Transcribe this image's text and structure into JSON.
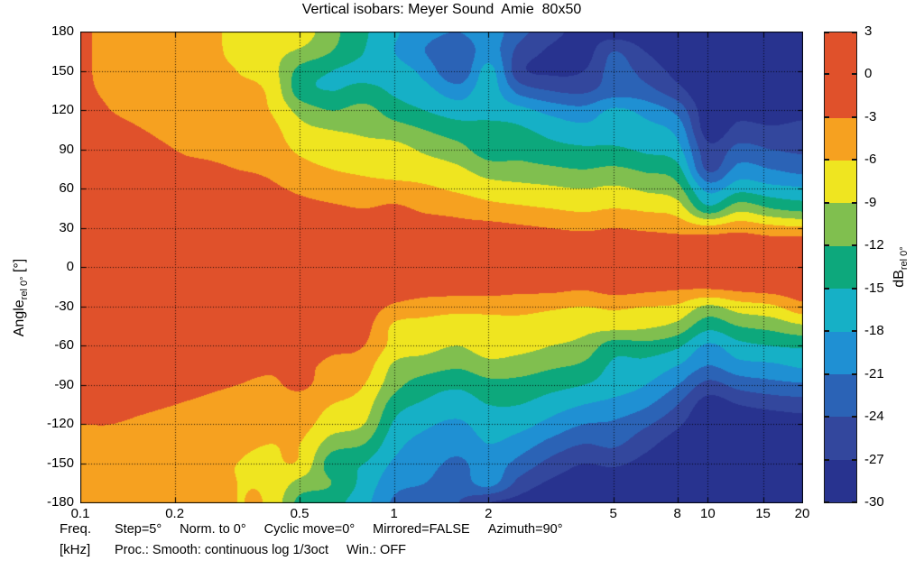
{
  "title": "Vertical isobars: Meyer Sound  Amie  80x50",
  "axes": {
    "y_label_main": "Angle",
    "y_label_sub": "rel 0°",
    "y_label_unit": " [°]",
    "y_ticks": [
      180,
      150,
      120,
      90,
      60,
      30,
      0,
      -30,
      -60,
      -90,
      -120,
      -150,
      -180
    ],
    "x_tick_labels": [
      "0.1",
      "0.2",
      "0.5",
      "1",
      "2",
      "5",
      "8",
      "10",
      "15",
      "20"
    ],
    "x_ticks_khz": [
      0.1,
      0.2,
      0.5,
      1,
      2,
      5,
      8,
      10,
      15,
      20
    ],
    "x_label_line1": "Freq.",
    "x_label_line2": "[kHz]",
    "x_range_khz": [
      0.1,
      20
    ],
    "y_range_deg": [
      -180,
      180
    ],
    "grid": "dotted black, 30° horizontal and labeled-frequency vertical lines"
  },
  "colorbar": {
    "label_main": "dB",
    "label_sub": "rel 0°",
    "ticks": [
      3,
      0,
      -3,
      -6,
      -9,
      -12,
      -15,
      -18,
      -21,
      -24,
      -27,
      -30
    ],
    "segment_colors_top_to_bottom": [
      "#e0512b",
      "#e0512b",
      "#f6a120",
      "#efe520",
      "#80bf4f",
      "#0da87c",
      "#16b0c6",
      "#1f90d3",
      "#2b63b6",
      "#33479d",
      "#28338f"
    ]
  },
  "footnotes": {
    "line1_items": [
      "Step=5°",
      "Norm. to 0°",
      "Cyclic move=0°",
      "Mirrored=FALSE",
      "Azimuth=90°"
    ],
    "line2_items": [
      "Proc.: Smooth: continuous log 1/3oct",
      "Win.: OFF"
    ]
  },
  "chart_data": {
    "type": "heatmap",
    "title": "Vertical isobars: Meyer Sound  Amie  80x50",
    "xlabel": "Freq. [kHz]",
    "ylabel": "Angle rel 0° [°]",
    "zlabel": "dB rel 0°",
    "x_scale": "log",
    "x_range_khz": [
      0.1,
      20
    ],
    "y_range_deg": [
      -180,
      180
    ],
    "z_levels_db": [
      3,
      0,
      -3,
      -6,
      -9,
      -12,
      -15,
      -18,
      -21,
      -24,
      -27,
      -30
    ],
    "x_frequencies_khz": [
      0.1,
      0.125,
      0.16,
      0.2,
      0.25,
      0.315,
      0.4,
      0.5,
      0.63,
      0.8,
      1,
      1.25,
      1.6,
      2,
      2.5,
      3.15,
      4,
      5,
      6.3,
      8,
      10,
      12.5,
      16,
      20
    ],
    "y_angles_deg": [
      180,
      165,
      150,
      135,
      120,
      105,
      90,
      75,
      60,
      45,
      30,
      15,
      0,
      -15,
      -30,
      -45,
      -60,
      -75,
      -90,
      -105,
      -120,
      -135,
      -150,
      -165,
      -180
    ],
    "values_db": [
      [
        -2.5,
        -4,
        -4.5,
        -5,
        -5.5,
        -6.5,
        -7.5,
        -7.5,
        -11,
        -14.5,
        -17.5,
        -20,
        -21,
        -19.5,
        -23,
        -26,
        -28,
        -28.5,
        -29,
        -29.5,
        -29.5,
        -29.5,
        -29.5,
        -29.5
      ],
      [
        -2.5,
        -4,
        -4.5,
        -5,
        -5.5,
        -6.5,
        -8,
        -9.5,
        -12,
        -15,
        -18,
        -21,
        -23.5,
        -19.5,
        -25,
        -27.5,
        -28.5,
        -24,
        -27,
        -29,
        -29.5,
        -29.5,
        -29.5,
        -29.5
      ],
      [
        -2.5,
        -4,
        -4.5,
        -5,
        -5.5,
        -6,
        -7.5,
        -13,
        -15,
        -16,
        -16.5,
        -19,
        -23.5,
        -17,
        -26,
        -27.5,
        -27,
        -23,
        -25,
        -28,
        -29.5,
        -29.5,
        -29.5,
        -29.5
      ],
      [
        -2.5,
        -3.5,
        -4,
        -4.5,
        -5,
        -5.5,
        -6.5,
        -13.5,
        -15,
        -14,
        -15.5,
        -17,
        -19.5,
        -16.5,
        -22,
        -24,
        -24.5,
        -22.5,
        -23,
        -26,
        -29.5,
        -29,
        -29.5,
        -29.5
      ],
      [
        -2,
        -3,
        -3.5,
        -4,
        -4.5,
        -5,
        -6,
        -10,
        -12,
        -11,
        -13.5,
        -15,
        -16.5,
        -16,
        -17,
        -19,
        -20,
        -17.5,
        -19,
        -22,
        -29,
        -28,
        -28.5,
        -28
      ],
      [
        -2,
        -2.5,
        -3,
        -3.5,
        -4,
        -4.5,
        -5,
        -8,
        -9,
        -9.5,
        -10.5,
        -12,
        -13.5,
        -14,
        -14.5,
        -16,
        -17,
        -16.5,
        -17,
        -19,
        -28.5,
        -26,
        -26.5,
        -26
      ],
      [
        -1.5,
        -2,
        -2.5,
        -3,
        -3.5,
        -4,
        -4.5,
        -6.5,
        -7.5,
        -8,
        -8,
        -9.5,
        -11,
        -13.5,
        -13,
        -14,
        -14.5,
        -14.5,
        -15.5,
        -17,
        -26,
        -23,
        -24,
        -24.5
      ],
      [
        -1,
        -1.5,
        -2,
        -2.5,
        -2.5,
        -3,
        -3.5,
        -5,
        -6,
        -6.5,
        -7,
        -7.5,
        -8.5,
        -10.5,
        -11,
        -11.5,
        -12,
        -11.5,
        -12.5,
        -14,
        -24.5,
        -20,
        -21,
        -22
      ],
      [
        -1,
        -1,
        -1.5,
        -1.5,
        -2,
        -2,
        -2.5,
        -3.5,
        -4.5,
        -5,
        -5,
        -5.5,
        -6.5,
        -7.5,
        -8,
        -8.5,
        -9,
        -8.5,
        -9.5,
        -11,
        -19,
        -16,
        -17,
        -17.5
      ],
      [
        -1,
        -1,
        -1,
        -1,
        -1,
        -1.5,
        -1.5,
        -2,
        -2.5,
        -3,
        -2.5,
        -3.5,
        -4,
        -5,
        -5.5,
        -6,
        -6.5,
        -6,
        -6.5,
        -7.5,
        -14,
        -10,
        -12,
        -13
      ],
      [
        -1,
        -1,
        -1,
        -1,
        -1,
        -1,
        -1,
        -1,
        -1.5,
        -1.5,
        -1.5,
        -1.5,
        -2,
        -2,
        -2.5,
        -3,
        -3.5,
        -3,
        -3.5,
        -4,
        -5,
        -4,
        -5,
        -5.5
      ],
      [
        -0.5,
        -0.5,
        -0.5,
        -0.5,
        -0.5,
        -0.5,
        -0.5,
        -1,
        -1,
        -1,
        -0.5,
        -0.5,
        -0.5,
        -0.5,
        -0.5,
        -0.5,
        -0.5,
        -0.5,
        -0.5,
        -1,
        -0.5,
        -0.5,
        -1,
        -0.5
      ],
      [
        -0.5,
        -0.5,
        -0.5,
        -0.5,
        -0.5,
        -0.5,
        -0.5,
        -0.5,
        -0.5,
        -0.5,
        -0.5,
        -0.5,
        -0.5,
        -0.5,
        -0.5,
        -0.5,
        -0.5,
        -0.5,
        -0.5,
        -0.5,
        -0.5,
        -0.5,
        -0.5,
        -0.5
      ],
      [
        -1,
        -1,
        -1,
        -1,
        -1,
        -1,
        -1,
        -1,
        -1,
        -1,
        -1,
        -1.5,
        -1.5,
        -1.5,
        -2,
        -2,
        -2.5,
        -1.5,
        -2,
        -2.5,
        -2.5,
        -2,
        -1.5,
        -1
      ],
      [
        -1,
        -1,
        -1,
        -1,
        -1,
        -1,
        -1,
        -1,
        -1,
        -1.5,
        -3.5,
        -4.5,
        -5,
        -5,
        -5,
        -5.5,
        -6,
        -5.5,
        -6,
        -6.5,
        -9.5,
        -7.5,
        -6.5,
        -4
      ],
      [
        -1,
        -1,
        -1,
        -1,
        -1,
        -1,
        -1.5,
        -1.5,
        -1.5,
        -2,
        -6.5,
        -7,
        -7.5,
        -7,
        -7,
        -7.5,
        -8,
        -8,
        -8.5,
        -10,
        -14,
        -12,
        -11,
        -9.5
      ],
      [
        -1,
        -1,
        -1,
        -1,
        -1,
        -1.5,
        -1.5,
        -2,
        -2.5,
        -3,
        -7,
        -8,
        -9,
        -7.5,
        -8,
        -9,
        -10,
        -13.5,
        -13,
        -14.5,
        -18.5,
        -16,
        -15,
        -14.5
      ],
      [
        -1,
        -1,
        -1,
        -1,
        -1.5,
        -2,
        -2.5,
        -2.5,
        -3.5,
        -4.5,
        -9.5,
        -10.5,
        -11.5,
        -10,
        -10.5,
        -11.5,
        -12.5,
        -15.5,
        -16,
        -18,
        -21,
        -19,
        -18.5,
        -17.5
      ],
      [
        -1.5,
        -1.5,
        -1.5,
        -2,
        -2.5,
        -3,
        -3.5,
        -2.5,
        -4.5,
        -6,
        -11,
        -13.5,
        -14.5,
        -13,
        -13,
        -14,
        -15,
        -16.5,
        -18,
        -21,
        -25,
        -23,
        -22,
        -21.5
      ],
      [
        -2,
        -2,
        -2.5,
        -3,
        -3.5,
        -4,
        -4.5,
        -4.5,
        -6,
        -7.5,
        -13.5,
        -15.5,
        -16.5,
        -15,
        -15,
        -16.5,
        -18,
        -19,
        -20.5,
        -24,
        -28.5,
        -27,
        -26,
        -25.5
      ],
      [
        -3,
        -3,
        -3.5,
        -4,
        -4.5,
        -4.5,
        -5,
        -5,
        -7.5,
        -9,
        -15.5,
        -17.5,
        -18.5,
        -16.5,
        -17,
        -19,
        -21,
        -21.5,
        -23.5,
        -26.5,
        -29.5,
        -29.5,
        -29,
        -28.5
      ],
      [
        -3.5,
        -3.5,
        -4,
        -4.5,
        -5,
        -5.5,
        -6,
        -6,
        -10.5,
        -12,
        -17,
        -19,
        -20,
        -18,
        -19.5,
        -22,
        -24,
        -23.5,
        -26,
        -28.5,
        -29.5,
        -29.5,
        -29.5,
        -29.5
      ],
      [
        -4,
        -4,
        -4.5,
        -5,
        -5.5,
        -6,
        -6.5,
        -6.5,
        -13.5,
        -15,
        -18.5,
        -20,
        -21.5,
        -19.5,
        -22,
        -25,
        -27,
        -26.5,
        -28,
        -29.5,
        -29.5,
        -29.5,
        -29.5,
        -29.5
      ],
      [
        -4,
        -4,
        -4.5,
        -5,
        -5.5,
        -6,
        -6.5,
        -10,
        -12,
        -16,
        -20,
        -21,
        -22.5,
        -20,
        -25,
        -27.5,
        -28.5,
        -29,
        -29.5,
        -29.5,
        -29.5,
        -29.5,
        -29.5,
        -29.5
      ],
      [
        -4,
        -4,
        -4.5,
        -5,
        -5.5,
        -6,
        -6.5,
        -13,
        -14,
        -17,
        -21.5,
        -22.5,
        -24,
        -27,
        -28,
        -29,
        -29.5,
        -29.5,
        -29.5,
        -29.5,
        -29.5,
        -29.5,
        -29.5,
        -29.5
      ]
    ],
    "legend_position": "colorbar right",
    "band_step_db": 3
  }
}
